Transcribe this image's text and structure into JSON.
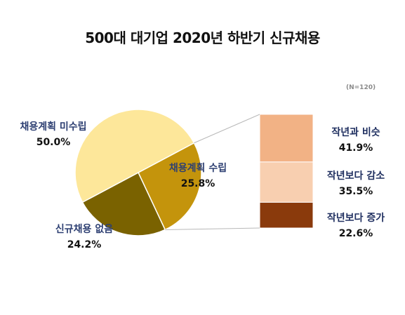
{
  "chart_data": {
    "type": "pie",
    "title": "500대 대기업 2020년 하반기 신규채용",
    "note": "(N=120)",
    "pie": {
      "slices": [
        {
          "name": "채용계획 수립",
          "value": 25.8,
          "display": "25.8%",
          "color": "#c4940c"
        },
        {
          "name": "신규채용 없음",
          "value": 24.2,
          "display": "24.2%",
          "color": "#7a6200"
        },
        {
          "name": "채용계획 미수립",
          "value": 50.0,
          "display": "50.0%",
          "color": "#fde79a"
        }
      ]
    },
    "breakdown": {
      "of": "채용계획 수립",
      "segments": [
        {
          "name": "작년과 비슷",
          "value": 41.9,
          "display": "41.9%",
          "color": "#f2b285"
        },
        {
          "name": "작년보다 감소",
          "value": 35.5,
          "display": "35.5%",
          "color": "#f8cfb0"
        },
        {
          "name": "작년보다 증가",
          "value": 22.6,
          "display": "22.6%",
          "color": "#8a3a0c"
        }
      ]
    }
  }
}
